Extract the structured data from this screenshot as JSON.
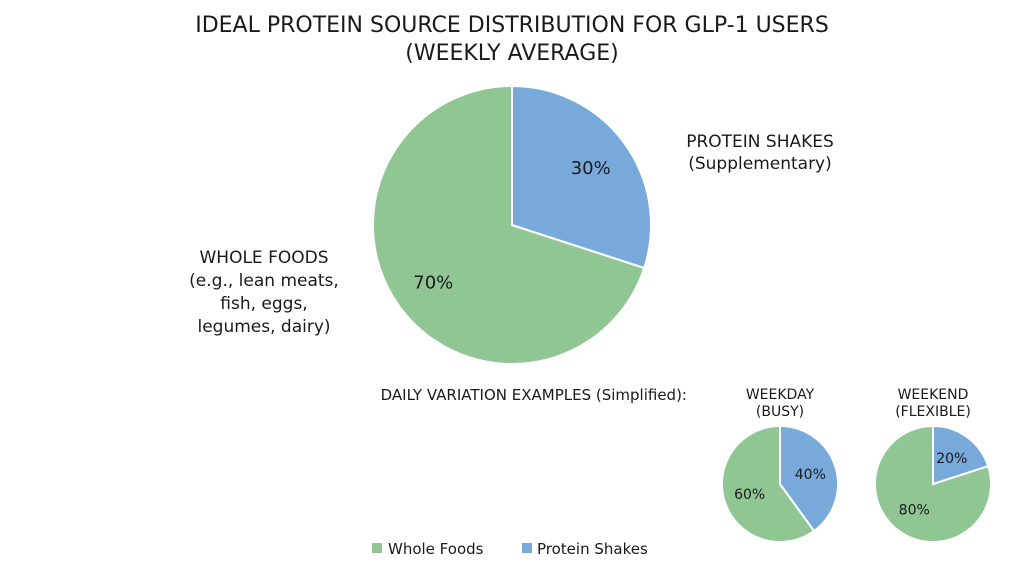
{
  "chart_data": [
    {
      "type": "pie",
      "title": "IDEAL PROTEIN SOURCE DISTRIBUTION FOR GLP-1 USERS",
      "subtitle": "(WEEKLY AVERAGE)",
      "slices": [
        {
          "name": "WHOLE FOODS",
          "label_lines": [
            "WHOLE FOODS",
            "(e.g., lean meats,",
            "fish, eggs,",
            "legumes, dairy)"
          ],
          "value": 70,
          "value_label": "70%",
          "color": "#8fc693"
        },
        {
          "name": "PROTEIN SHAKES",
          "label_lines": [
            "PROTEIN SHAKES",
            "(Supplementary)"
          ],
          "value": 30,
          "value_label": "30%",
          "color": "#78a9db"
        }
      ]
    },
    {
      "type": "pie",
      "title_lines": [
        "WEEKDAY",
        "(BUSY)"
      ],
      "slices": [
        {
          "name": "Whole Foods",
          "value": 60,
          "value_label": "60%",
          "color": "#8fc693"
        },
        {
          "name": "Protein Shakes",
          "value": 40,
          "value_label": "40%",
          "color": "#78a9db"
        }
      ]
    },
    {
      "type": "pie",
      "title_lines": [
        "WEEKEND",
        "(FLEXIBLE)"
      ],
      "slices": [
        {
          "name": "Whole Foods",
          "value": 80,
          "value_label": "80%",
          "color": "#8fc693"
        },
        {
          "name": "Protein Shakes",
          "value": 20,
          "value_label": "20%",
          "color": "#78a9db"
        }
      ]
    }
  ],
  "section_label": "DAILY VARIATION EXAMPLES (Simplified):",
  "legend": [
    {
      "label": "Whole Foods",
      "color": "#8fc693"
    },
    {
      "label": "Protein Shakes",
      "color": "#78a9db"
    }
  ]
}
